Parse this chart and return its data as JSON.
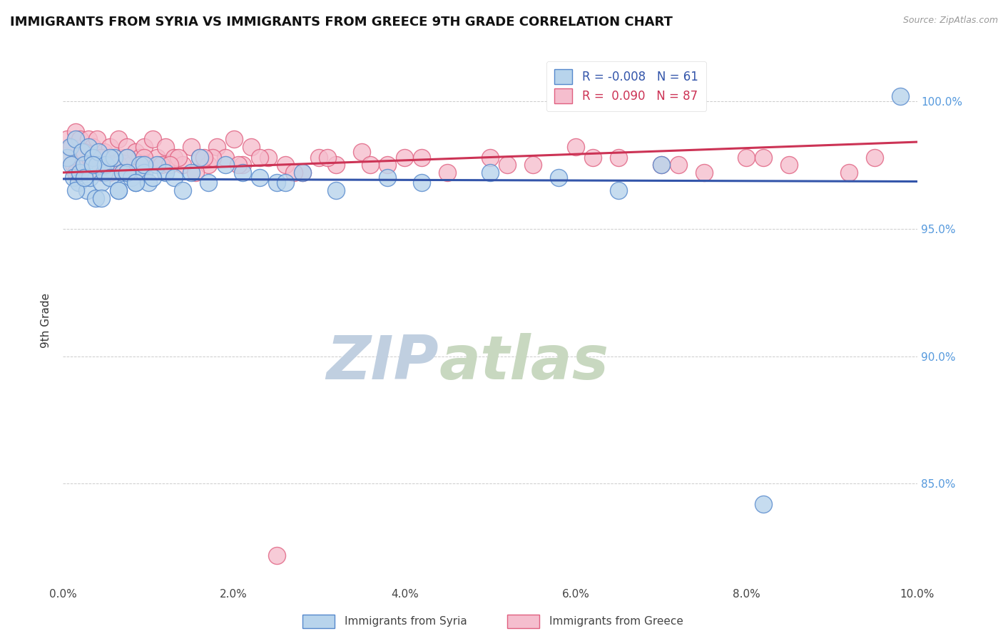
{
  "title": "IMMIGRANTS FROM SYRIA VS IMMIGRANTS FROM GREECE 9TH GRADE CORRELATION CHART",
  "source_text": "Source: ZipAtlas.com",
  "ylabel": "9th Grade",
  "xmin": 0.0,
  "xmax": 10.0,
  "ymin": 81.0,
  "ymax": 101.8,
  "yticks": [
    85.0,
    90.0,
    95.0,
    100.0
  ],
  "ytick_labels": [
    "85.0%",
    "90.0%",
    "95.0%",
    "100.0%"
  ],
  "xticks": [
    0.0,
    2.0,
    4.0,
    6.0,
    8.0,
    10.0
  ],
  "xtick_labels": [
    "0.0%",
    "2.0%",
    "4.0%",
    "6.0%",
    "8.0%",
    "10.0%"
  ],
  "syria_color": "#b8d4ec",
  "greece_color": "#f5bece",
  "syria_edge_color": "#5588cc",
  "greece_edge_color": "#e06080",
  "syria_line_color": "#3355aa",
  "greece_line_color": "#cc3355",
  "legend_r_syria": "-0.008",
  "legend_n_syria": "61",
  "legend_r_greece": "0.090",
  "legend_n_greece": "87",
  "watermark_zip": "ZIP",
  "watermark_atlas": "atlas",
  "watermark_color_zip": "#c0cfe0",
  "watermark_color_atlas": "#c8d8c0",
  "syria_label": "Immigrants from Syria",
  "greece_label": "Immigrants from Greece",
  "syria_x": [
    0.05,
    0.08,
    0.1,
    0.12,
    0.15,
    0.18,
    0.2,
    0.22,
    0.25,
    0.28,
    0.3,
    0.32,
    0.35,
    0.38,
    0.4,
    0.42,
    0.45,
    0.48,
    0.5,
    0.55,
    0.6,
    0.65,
    0.7,
    0.75,
    0.8,
    0.85,
    0.9,
    0.95,
    1.0,
    1.1,
    1.2,
    1.3,
    1.4,
    1.5,
    1.6,
    1.7,
    1.9,
    2.1,
    2.3,
    2.5,
    2.8,
    3.2,
    3.8,
    4.2,
    5.0,
    5.8,
    6.5,
    7.0,
    8.2,
    9.8,
    0.15,
    0.25,
    0.35,
    0.45,
    0.55,
    0.65,
    0.75,
    0.85,
    0.95,
    1.05,
    2.6
  ],
  "syria_y": [
    97.8,
    98.2,
    97.5,
    97.0,
    98.5,
    96.8,
    97.2,
    98.0,
    97.5,
    96.5,
    98.2,
    97.0,
    97.8,
    96.2,
    97.5,
    98.0,
    96.8,
    97.2,
    97.5,
    97.0,
    97.8,
    96.5,
    97.2,
    97.8,
    97.0,
    96.8,
    97.5,
    97.2,
    96.8,
    97.5,
    97.2,
    97.0,
    96.5,
    97.2,
    97.8,
    96.8,
    97.5,
    97.2,
    97.0,
    96.8,
    97.2,
    96.5,
    97.0,
    96.8,
    97.2,
    97.0,
    96.5,
    97.5,
    84.2,
    100.2,
    96.5,
    97.0,
    97.5,
    96.2,
    97.8,
    96.5,
    97.2,
    96.8,
    97.5,
    97.0,
    96.8
  ],
  "greece_x": [
    0.05,
    0.08,
    0.1,
    0.12,
    0.15,
    0.18,
    0.2,
    0.22,
    0.25,
    0.28,
    0.3,
    0.32,
    0.35,
    0.38,
    0.4,
    0.42,
    0.45,
    0.48,
    0.5,
    0.55,
    0.6,
    0.65,
    0.7,
    0.75,
    0.8,
    0.85,
    0.9,
    0.95,
    1.0,
    1.05,
    1.1,
    1.2,
    1.3,
    1.4,
    1.5,
    1.6,
    1.7,
    1.8,
    1.9,
    2.0,
    2.1,
    2.2,
    2.4,
    2.6,
    2.8,
    3.0,
    3.2,
    3.5,
    3.8,
    4.0,
    4.5,
    5.0,
    5.5,
    6.0,
    6.5,
    7.0,
    7.5,
    8.0,
    8.5,
    9.5,
    0.15,
    0.25,
    0.35,
    0.45,
    0.55,
    0.65,
    0.75,
    0.85,
    0.95,
    1.15,
    1.35,
    1.55,
    1.75,
    2.05,
    2.3,
    2.7,
    3.1,
    3.6,
    4.2,
    5.2,
    6.2,
    7.2,
    8.2,
    9.2,
    1.25,
    1.65,
    2.5
  ],
  "greece_y": [
    98.5,
    97.8,
    98.2,
    97.5,
    98.8,
    97.2,
    98.5,
    97.8,
    98.0,
    97.5,
    98.5,
    97.8,
    98.2,
    97.5,
    98.5,
    97.8,
    97.2,
    98.0,
    97.8,
    98.2,
    97.5,
    98.5,
    97.8,
    98.2,
    97.5,
    98.0,
    97.8,
    98.2,
    97.5,
    98.5,
    97.8,
    98.2,
    97.8,
    97.5,
    98.2,
    97.8,
    97.5,
    98.2,
    97.8,
    98.5,
    97.5,
    98.2,
    97.8,
    97.5,
    97.2,
    97.8,
    97.5,
    98.0,
    97.5,
    97.8,
    97.2,
    97.8,
    97.5,
    98.2,
    97.8,
    97.5,
    97.2,
    97.8,
    97.5,
    97.8,
    97.2,
    98.0,
    97.5,
    97.8,
    97.2,
    97.5,
    97.8,
    97.2,
    97.8,
    97.5,
    97.8,
    97.2,
    97.8,
    97.5,
    97.8,
    97.2,
    97.8,
    97.5,
    97.8,
    97.5,
    97.8,
    97.5,
    97.8,
    97.2,
    97.5,
    97.8,
    82.2
  ],
  "syria_trend_x": [
    0.0,
    10.0
  ],
  "syria_trend_y": [
    96.95,
    96.85
  ],
  "greece_trend_x": [
    0.0,
    10.0
  ],
  "greece_trend_y": [
    97.2,
    98.4
  ]
}
